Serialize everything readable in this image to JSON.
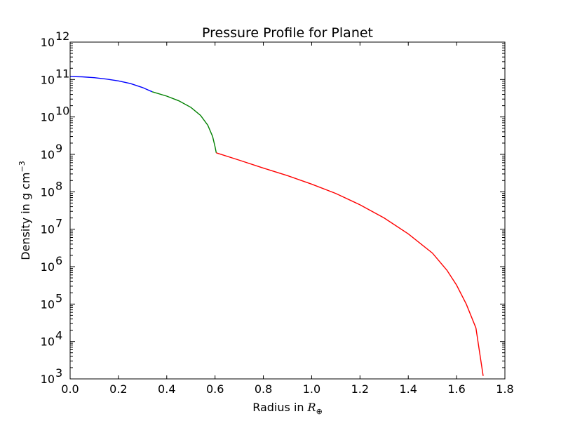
{
  "chart_data": {
    "type": "line",
    "title": "Pressure Profile for Planet",
    "xlabel": "Radius in",
    "xlabel_math": "R",
    "xlabel_math_sub": "⊕",
    "ylabel": "Density in g cm",
    "ylabel_sup": "−3",
    "xlim": [
      0.0,
      1.8
    ],
    "ylim": [
      1000,
      1000000000000
    ],
    "yscale": "log",
    "grid": false,
    "xticks": [
      "0.0",
      "0.2",
      "0.4",
      "0.6",
      "0.8",
      "1.0",
      "1.2",
      "1.4",
      "1.6",
      "1.8"
    ],
    "yticks": [
      {
        "base": "10",
        "exp": "3"
      },
      {
        "base": "10",
        "exp": "4"
      },
      {
        "base": "10",
        "exp": "5"
      },
      {
        "base": "10",
        "exp": "6"
      },
      {
        "base": "10",
        "exp": "7"
      },
      {
        "base": "10",
        "exp": "8"
      },
      {
        "base": "10",
        "exp": "9"
      },
      {
        "base": "10",
        "exp": "10"
      },
      {
        "base": "10",
        "exp": "11"
      },
      {
        "base": "10",
        "exp": "12"
      }
    ],
    "series": [
      {
        "color": "#0000ff",
        "points": [
          [
            0.0,
            120000000000.0
          ],
          [
            0.05,
            118000000000.0
          ],
          [
            0.1,
            112000000000.0
          ],
          [
            0.15,
            103000000000.0
          ],
          [
            0.2,
            92000000000.0
          ],
          [
            0.25,
            78000000000.0
          ],
          [
            0.3,
            61000000000.0
          ],
          [
            0.34,
            47000000000.0
          ]
        ]
      },
      {
        "color": "#008000",
        "points": [
          [
            0.34,
            47000000000.0
          ],
          [
            0.4,
            36000000000.0
          ],
          [
            0.45,
            27000000000.0
          ],
          [
            0.5,
            18000000000.0
          ],
          [
            0.54,
            11000000000.0
          ],
          [
            0.57,
            6000000000.0
          ],
          [
            0.59,
            3000000000.0
          ],
          [
            0.6,
            1600000000.0
          ],
          [
            0.605,
            1100000000.0
          ]
        ]
      },
      {
        "color": "#ff0000",
        "points": [
          [
            0.605,
            1100000000.0
          ],
          [
            0.7,
            700000000.0
          ],
          [
            0.8,
            430000000.0
          ],
          [
            0.9,
            270000000.0
          ],
          [
            1.0,
            160000000.0
          ],
          [
            1.1,
            90000000.0
          ],
          [
            1.2,
            45000000.0
          ],
          [
            1.3,
            20000000.0
          ],
          [
            1.4,
            7500000.0
          ],
          [
            1.5,
            2300000.0
          ],
          [
            1.56,
            800000.0
          ],
          [
            1.6,
            320000.0
          ],
          [
            1.64,
            100000.0
          ],
          [
            1.68,
            23000.0
          ],
          [
            1.71,
            1200.0
          ]
        ]
      }
    ]
  }
}
